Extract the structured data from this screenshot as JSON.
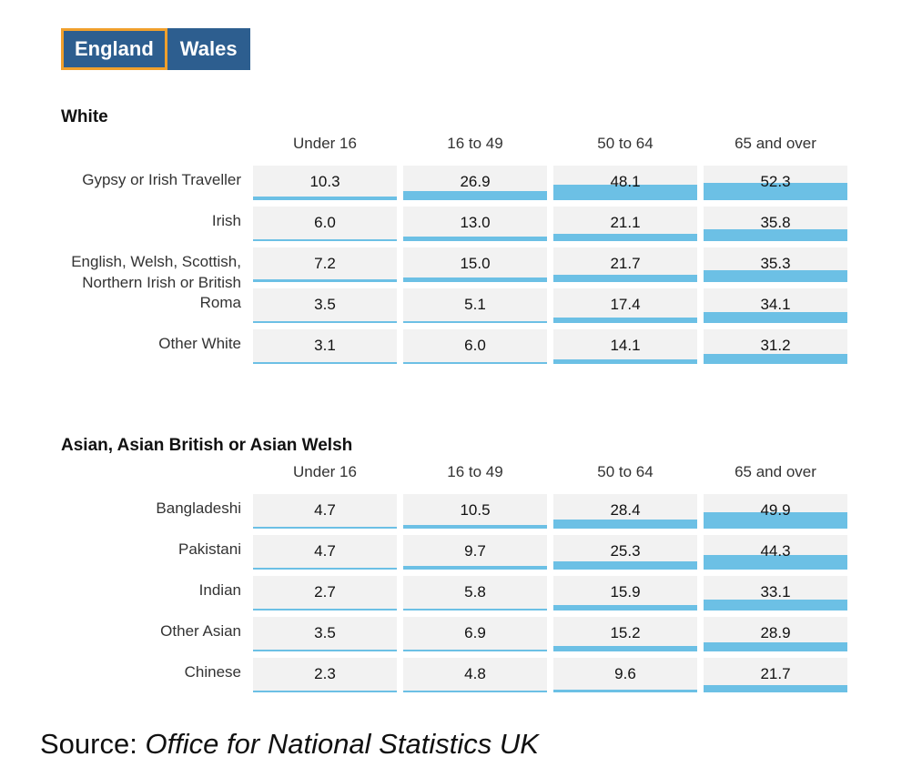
{
  "tabs": [
    {
      "label": "England",
      "active": true
    },
    {
      "label": "Wales",
      "active": false
    }
  ],
  "colors": {
    "bar": "#6cc0e5",
    "cell_bg": "#f2f2f2",
    "tab_bg": "#2d5e8f",
    "tab_active_border": "#f0a02c"
  },
  "source": {
    "prefix": "Source: ",
    "name": "Office for National Statistics UK"
  },
  "chart_data": [
    {
      "type": "table",
      "title": "White",
      "columns": [
        "Under 16",
        "16 to 49",
        "50 to 64",
        "65 and over"
      ],
      "rows": [
        {
          "label": "Gypsy or Irish Traveller",
          "values": [
            10.3,
            26.9,
            48.1,
            52.3
          ]
        },
        {
          "label": "Irish",
          "values": [
            6.0,
            13.0,
            21.1,
            35.8
          ]
        },
        {
          "label": "English, Welsh, Scottish, Northern Irish or British",
          "values": [
            7.2,
            15.0,
            21.7,
            35.3
          ]
        },
        {
          "label": "Roma",
          "values": [
            3.5,
            5.1,
            17.4,
            34.1
          ]
        },
        {
          "label": "Other White",
          "values": [
            3.1,
            6.0,
            14.1,
            31.2
          ]
        }
      ]
    },
    {
      "type": "table",
      "title": "Asian, Asian British or Asian Welsh",
      "columns": [
        "Under 16",
        "16 to 49",
        "50 to 64",
        "65 and over"
      ],
      "rows": [
        {
          "label": "Bangladeshi",
          "values": [
            4.7,
            10.5,
            28.4,
            49.9
          ]
        },
        {
          "label": "Pakistani",
          "values": [
            4.7,
            9.7,
            25.3,
            44.3
          ]
        },
        {
          "label": "Indian",
          "values": [
            2.7,
            5.8,
            15.9,
            33.1
          ]
        },
        {
          "label": "Other Asian",
          "values": [
            3.5,
            6.9,
            15.2,
            28.9
          ]
        },
        {
          "label": "Chinese",
          "values": [
            2.3,
            4.8,
            9.6,
            21.7
          ]
        }
      ]
    }
  ]
}
